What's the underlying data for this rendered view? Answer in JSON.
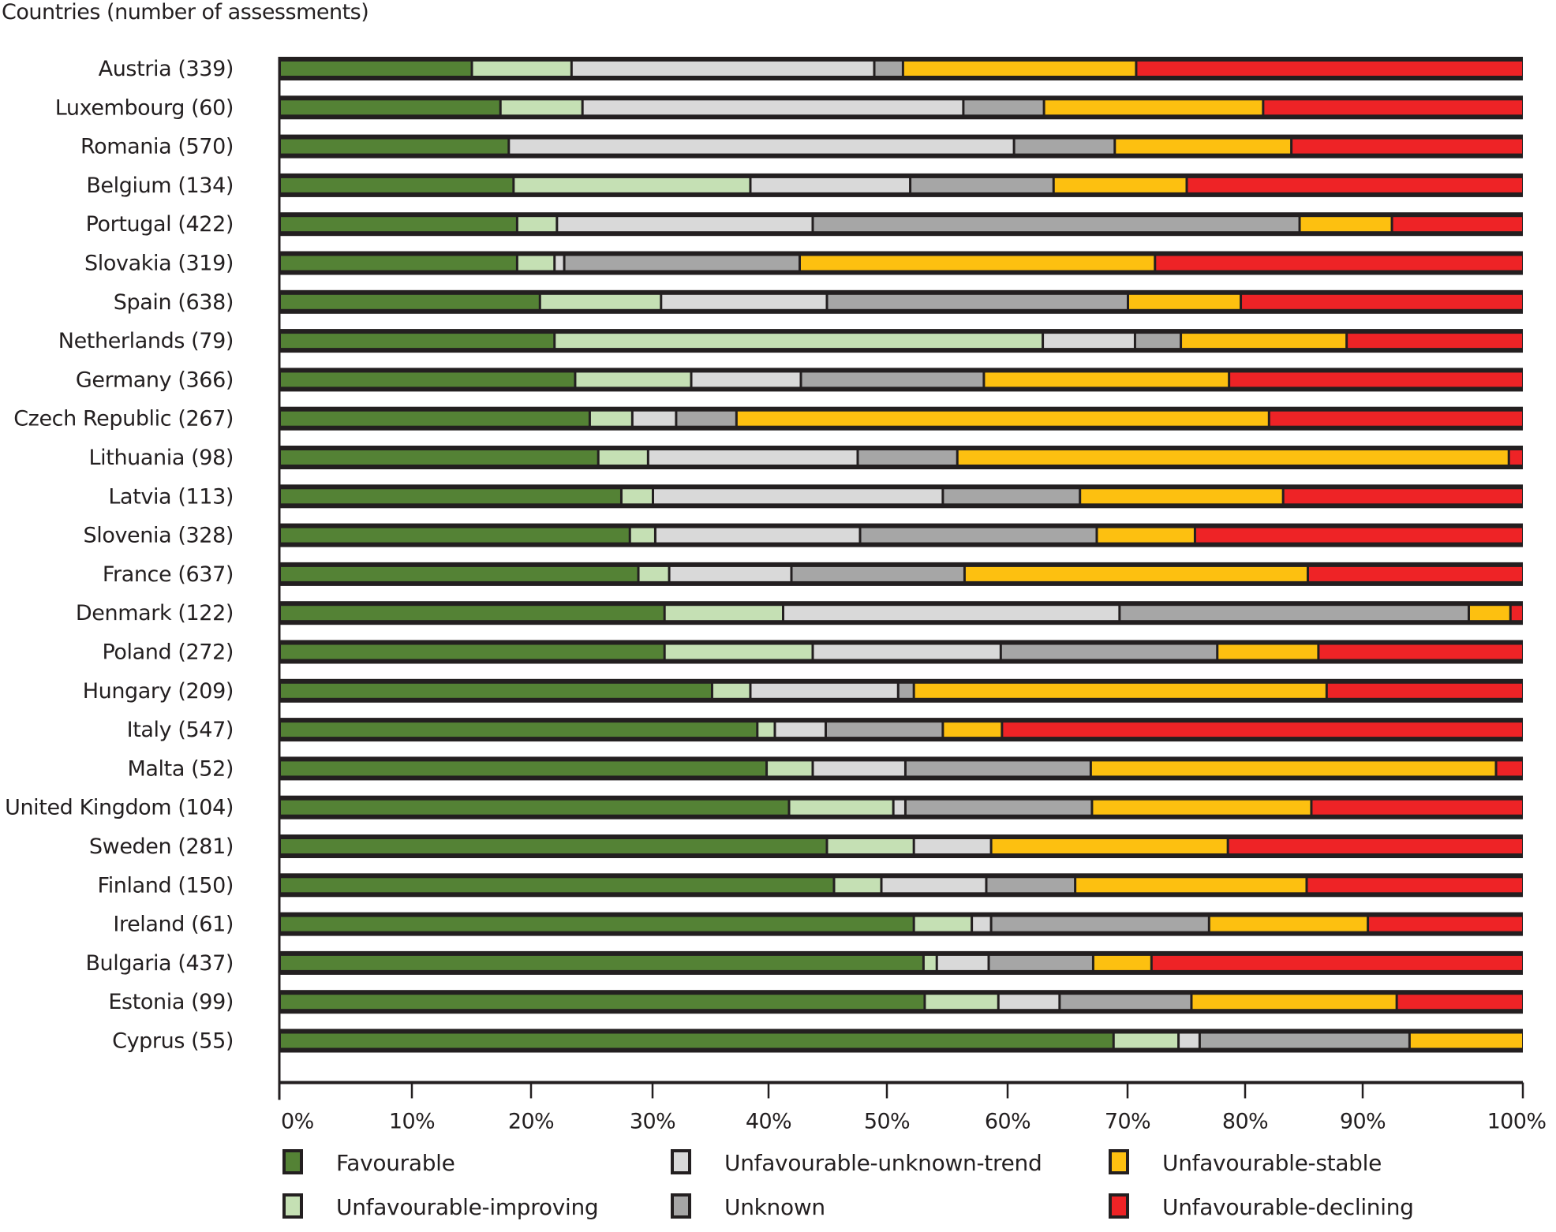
{
  "chart_data": {
    "type": "bar",
    "orientation": "horizontal",
    "stacked": true,
    "percent_stacked": true,
    "title": "Countries (number of assessments)",
    "xlabel": "",
    "ylabel": "Countries (number of assessments)",
    "xlim": [
      0,
      100
    ],
    "x_ticks": [
      "0%",
      "10%",
      "20%",
      "30%",
      "40%",
      "50%",
      "60%",
      "70%",
      "80%",
      "90%",
      "100%"
    ],
    "grid": false,
    "legend_position": "bottom",
    "categories": [
      "Austria (339)",
      "Luxembourg (60)",
      "Romania (570)",
      "Belgium (134)",
      "Portugal (422)",
      "Slovakia (319)",
      "Spain (638)",
      "Netherlands (79)",
      "Germany (366)",
      "Czech Republic (267)",
      "Lithuania (98)",
      "Latvia (113)",
      "Slovenia (328)",
      "France (637)",
      "Denmark (122)",
      "Poland (272)",
      "Hungary (209)",
      "Italy (547)",
      "Malta (52)",
      "United Kingdom (104)",
      "Sweden (281)",
      "Finland (150)",
      "Ireland (61)",
      "Bulgaria (437)",
      "Estonia (99)",
      "Cyprus (55)"
    ],
    "series": [
      {
        "name": "Favourable",
        "color": "#548235",
        "values": [
          15.0,
          17.4,
          18.1,
          18.5,
          18.8,
          18.8,
          20.7,
          21.9,
          23.6,
          24.8,
          25.5,
          27.4,
          28.1,
          28.8,
          31.0,
          31.0,
          35.1,
          39.0,
          39.8,
          41.7,
          44.9,
          45.5,
          52.2,
          53.0,
          53.1,
          68.8
        ]
      },
      {
        "name": "Unfavourable-improving",
        "color": "#C5E0B4",
        "values": [
          8.3,
          6.8,
          0.0,
          19.9,
          3.3,
          3.1,
          10.0,
          41.0,
          9.7,
          3.5,
          4.1,
          2.6,
          2.1,
          2.6,
          10.2,
          12.7,
          3.3,
          1.5,
          3.9,
          8.8,
          7.3,
          4.0,
          4.8,
          1.1,
          6.1,
          5.5
        ]
      },
      {
        "name": "Unfavourable-unknown-trend",
        "color": "#D9D9D9",
        "values": [
          25.6,
          32.1,
          42.4,
          13.5,
          21.6,
          0.8,
          14.2,
          7.7,
          9.4,
          3.7,
          17.9,
          24.6,
          17.5,
          10.5,
          28.1,
          15.7,
          12.5,
          4.3,
          7.8,
          1.0,
          6.4,
          8.7,
          1.6,
          4.3,
          5.1,
          1.8
        ]
      },
      {
        "name": "Unknown",
        "color": "#A6A6A6",
        "values": [
          2.4,
          6.7,
          8.4,
          11.9,
          40.9,
          19.9,
          25.1,
          3.9,
          15.3,
          5.2,
          8.3,
          11.4,
          19.7,
          14.5,
          27.3,
          18.2,
          1.3,
          9.8,
          15.4,
          15.5,
          0.0,
          7.4,
          18.3,
          8.7,
          11.1,
          16.8
        ]
      },
      {
        "name": "Unfavourable-stable",
        "color": "#FDC010",
        "values": [
          19.4,
          18.5,
          15.0,
          11.2,
          7.2,
          29.7,
          9.6,
          14.1,
          20.6,
          44.8,
          43.3,
          17.2,
          8.3,
          28.9,
          2.6,
          8.6,
          34.7,
          4.9,
          31.4,
          18.6,
          19.9,
          19.6,
          13.4,
          4.9,
          16.7,
          7.1
        ]
      },
      {
        "name": "Unfavourable-declining",
        "color": "#EE2326",
        "values": [
          29.3,
          18.5,
          16.1,
          25.0,
          8.2,
          27.7,
          20.4,
          11.4,
          21.4,
          18.0,
          0.9,
          16.8,
          24.3,
          14.7,
          0.8,
          13.8,
          13.1,
          40.5,
          1.7,
          14.4,
          21.5,
          14.8,
          9.7,
          28.0,
          7.9,
          0.0
        ]
      }
    ],
    "legend": [
      "Favourable",
      "Unfavourable-improving",
      "Unfavourable-unknown-trend",
      "Unknown",
      "Unfavourable-stable",
      "Unfavourable-declining"
    ]
  },
  "colors": {
    "border": "#231F20",
    "background": "#FFFFFF"
  }
}
